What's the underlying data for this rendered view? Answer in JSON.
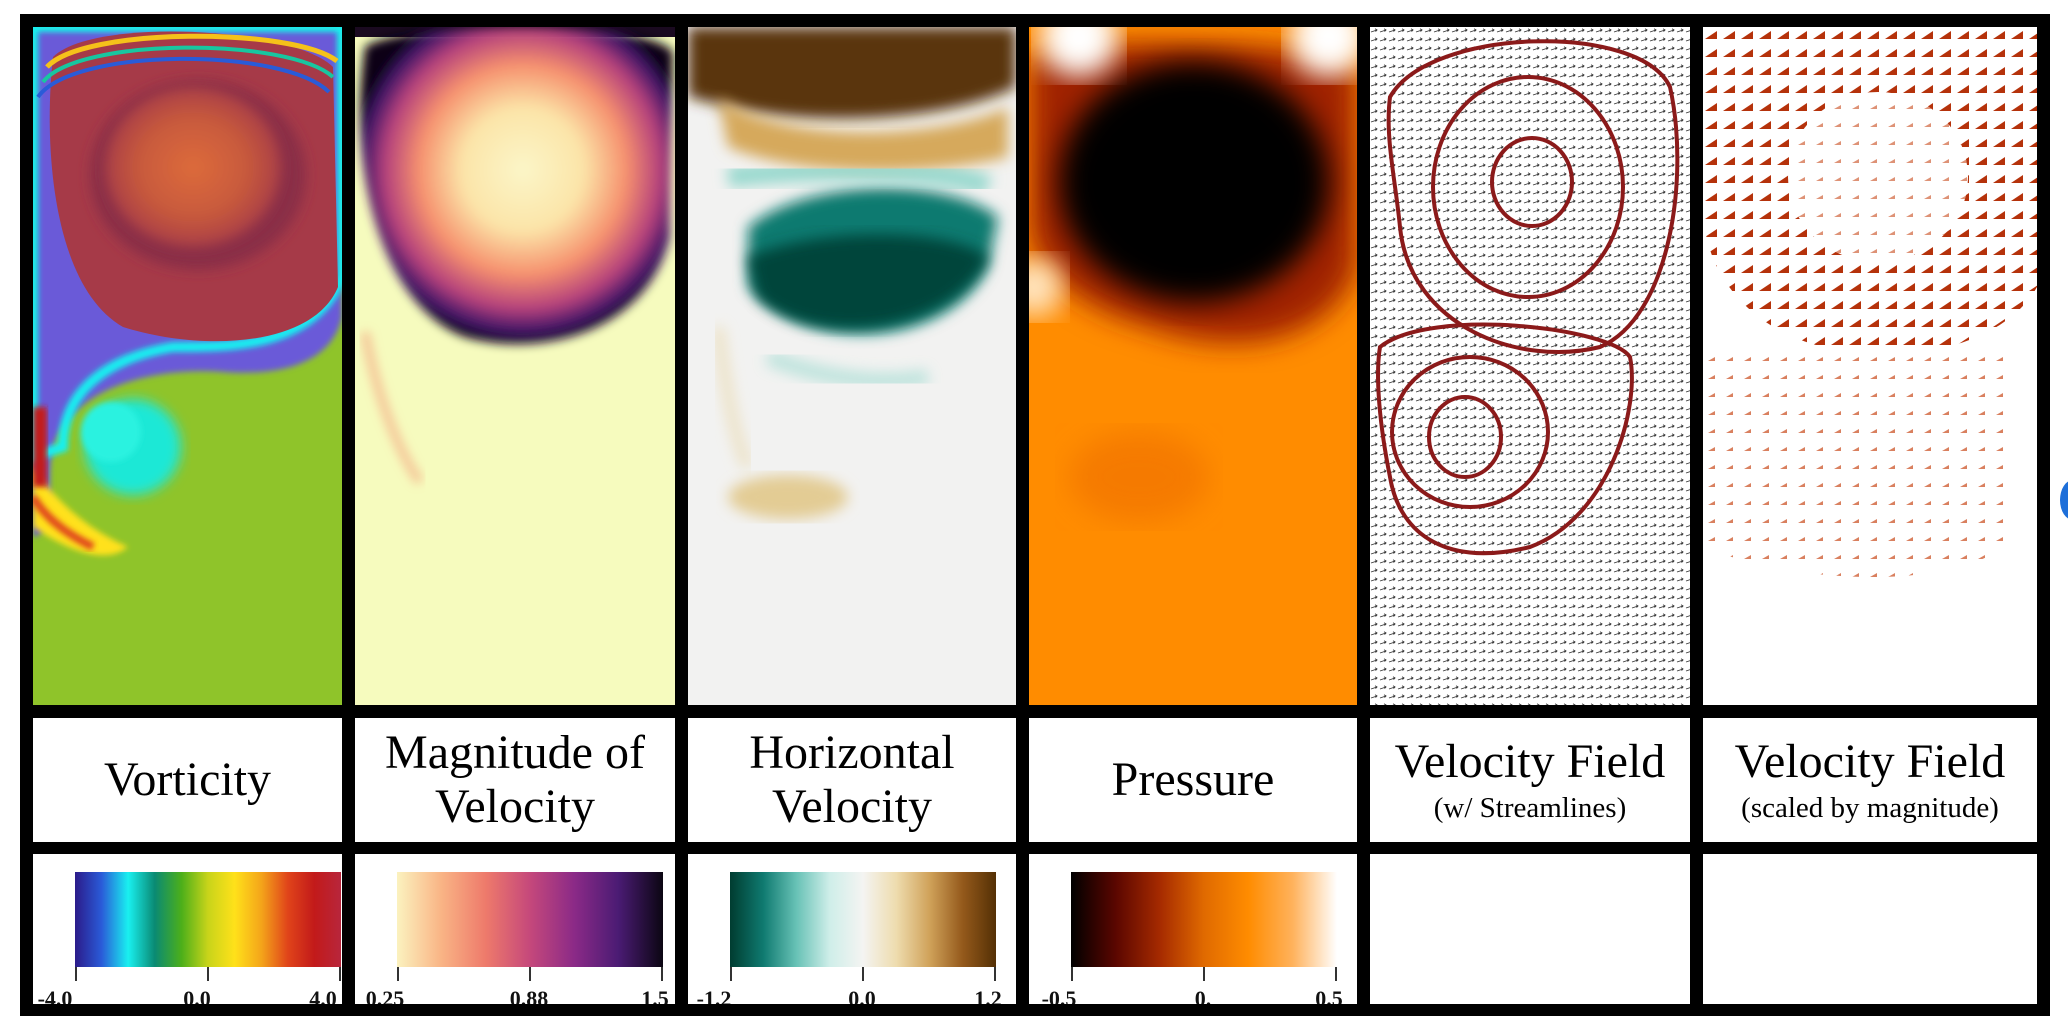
{
  "panels": [
    {
      "title_line1": "Vorticity",
      "title_line2": "",
      "subtitle": "",
      "field": "vorticity",
      "colorbar": {
        "min": "-4.0",
        "mid": "0.0",
        "max": "4.0",
        "colors": [
          "#2b1b8a",
          "#2a5bd8",
          "#19f0f0",
          "#0a8a73",
          "#4caf1a",
          "#c8d41a",
          "#ffe11a",
          "#f4a51a",
          "#e0441a",
          "#c21a1a",
          "#b8263c"
        ]
      }
    },
    {
      "title_line1": "Magnitude of",
      "title_line2": "Velocity",
      "subtitle": "",
      "field": "magnitude",
      "colorbar": {
        "min": "0.25",
        "mid": "0.88",
        "max": "1.5",
        "colors": [
          "#fbf2bf",
          "#f9b485",
          "#ee7a6b",
          "#c5487b",
          "#8b2a87",
          "#4a1b73",
          "#0b0612"
        ]
      }
    },
    {
      "title_line1": "Horizontal",
      "title_line2": "Velocity",
      "subtitle": "",
      "field": "horizontal",
      "colorbar": {
        "min": "-1.2",
        "mid": "0.0",
        "max": "1.2",
        "colors": [
          "#003c30",
          "#0f7a70",
          "#68c2b6",
          "#cfeee9",
          "#f4f4f2",
          "#eedcae",
          "#d0a25a",
          "#94591b",
          "#543005"
        ]
      }
    },
    {
      "title_line1": "Pressure",
      "title_line2": "",
      "subtitle": "",
      "field": "pressure",
      "colorbar": {
        "min": "-0.5",
        "mid": "0.",
        "max": "0.5",
        "colors": [
          "#000000",
          "#5a0600",
          "#a52a00",
          "#e06a00",
          "#ff8c00",
          "#ffb25c",
          "#ffffff"
        ]
      }
    },
    {
      "title_line1": "Velocity Field",
      "title_line2": "",
      "subtitle": "(w/ Streamlines)",
      "field": "streamlines",
      "colorbar": null
    },
    {
      "title_line1": "Velocity Field",
      "title_line2": "",
      "subtitle": "(scaled by magnitude)",
      "field": "scaled",
      "colorbar": null
    }
  ],
  "colors": {
    "frame": "#000000",
    "streamline": "#8b1a1a",
    "arrow": "#b5320b"
  }
}
